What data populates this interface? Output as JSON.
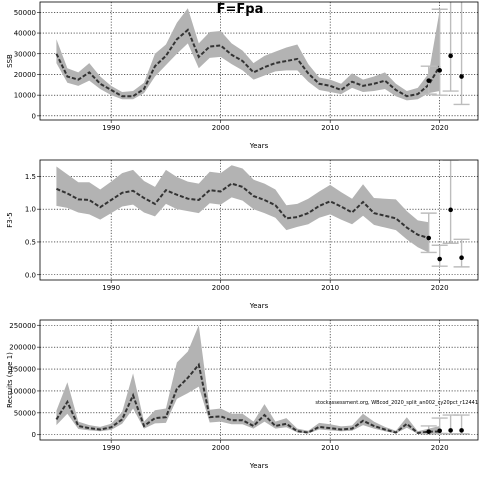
{
  "title": "F=Fpa",
  "annotation": "stockassessment.org, WBcod_2020_split_an002_cy20pct_r12441",
  "colors": {
    "band": "#b3b3b3",
    "line": "#333333",
    "forecast": "#000000",
    "whisker": "#bdbdbd",
    "grid": "#000000"
  },
  "chart_data": [
    {
      "type": "line",
      "name": "ssb",
      "ylabel": "SSB",
      "xlabel": "Years",
      "xlim": [
        1983.5,
        2023.5
      ],
      "ylim": [
        -2000,
        55000
      ],
      "xticks": [
        1990,
        2000,
        2010,
        2020
      ],
      "yticks": [
        0,
        10000,
        20000,
        30000,
        40000,
        50000
      ],
      "x": [
        1985,
        1986,
        1987,
        1988,
        1989,
        1990,
        1991,
        1992,
        1993,
        1994,
        1995,
        1996,
        1997,
        1998,
        1999,
        2000,
        2001,
        2002,
        2003,
        2004,
        2005,
        2006,
        2007,
        2008,
        2009,
        2010,
        2011,
        2012,
        2013,
        2014,
        2015,
        2016,
        2017,
        2018,
        2019,
        2020
      ],
      "estimate": [
        30000,
        19000,
        17500,
        21000,
        15500,
        12500,
        9500,
        9500,
        13000,
        24000,
        29000,
        37000,
        41500,
        28500,
        33500,
        34000,
        29500,
        26500,
        21000,
        23500,
        25500,
        26500,
        27500,
        20500,
        15500,
        14500,
        12500,
        16500,
        14500,
        15500,
        17000,
        12500,
        9500,
        10500,
        15000,
        24000
      ],
      "lower": [
        25500,
        16000,
        14500,
        17000,
        13000,
        10000,
        8000,
        8000,
        11000,
        19000,
        24500,
        30000,
        35000,
        23000,
        28000,
        28500,
        25000,
        22000,
        17500,
        19500,
        21500,
        22000,
        22000,
        16500,
        12500,
        11500,
        10500,
        13500,
        11500,
        12000,
        13000,
        9500,
        7500,
        8000,
        11000,
        12000
      ],
      "upper": [
        37000,
        23000,
        21000,
        25500,
        19000,
        14500,
        11500,
        12000,
        16000,
        30000,
        34500,
        45000,
        52000,
        35000,
        40500,
        41000,
        35000,
        31500,
        25500,
        29000,
        31000,
        33000,
        34500,
        25000,
        18500,
        17500,
        15500,
        20500,
        17500,
        19000,
        21000,
        15500,
        12000,
        13500,
        20500,
        51000
      ],
      "forecast": [
        {
          "x": 2019,
          "est": 17000,
          "lo": 10500,
          "hi": 24000
        },
        {
          "x": 2020,
          "est": 22000,
          "lo": 10000,
          "hi": 51500
        },
        {
          "x": 2021,
          "est": 29000,
          "lo": 12000,
          "hi": 58000
        },
        {
          "x": 2022,
          "est": 19000,
          "lo": 5500,
          "hi": 58000
        }
      ]
    },
    {
      "type": "line",
      "name": "fbar",
      "ylabel": "F3-5",
      "xlabel": "Years",
      "xlim": [
        1983.5,
        2023.5
      ],
      "ylim": [
        -0.08,
        1.75
      ],
      "xticks": [
        1990,
        2000,
        2010,
        2020
      ],
      "yticks": [
        0.0,
        0.5,
        1.0,
        1.5
      ],
      "x": [
        1985,
        1986,
        1987,
        1988,
        1989,
        1990,
        1991,
        1992,
        1993,
        1994,
        1995,
        1996,
        1997,
        1998,
        1999,
        2000,
        2001,
        2002,
        2003,
        2004,
        2005,
        2006,
        2007,
        2008,
        2009,
        2010,
        2011,
        2012,
        2013,
        2014,
        2015,
        2016,
        2017,
        2018,
        2019
      ],
      "estimate": [
        1.31,
        1.24,
        1.15,
        1.14,
        1.03,
        1.14,
        1.25,
        1.28,
        1.17,
        1.08,
        1.29,
        1.22,
        1.16,
        1.14,
        1.29,
        1.27,
        1.39,
        1.34,
        1.2,
        1.14,
        1.06,
        0.86,
        0.88,
        0.94,
        1.05,
        1.12,
        1.04,
        0.95,
        1.11,
        0.94,
        0.9,
        0.86,
        0.72,
        0.61,
        0.56
      ],
      "lower": [
        1.05,
        1.02,
        0.95,
        0.92,
        0.84,
        0.94,
        1.04,
        1.07,
        0.95,
        0.89,
        1.08,
        1.0,
        0.97,
        0.94,
        1.09,
        1.07,
        1.18,
        1.13,
        1.0,
        0.94,
        0.87,
        0.68,
        0.73,
        0.77,
        0.87,
        0.92,
        0.84,
        0.77,
        0.9,
        0.76,
        0.72,
        0.68,
        0.54,
        0.42,
        0.34
      ],
      "upper": [
        1.65,
        1.53,
        1.41,
        1.41,
        1.3,
        1.42,
        1.55,
        1.6,
        1.43,
        1.34,
        1.6,
        1.49,
        1.42,
        1.39,
        1.57,
        1.55,
        1.67,
        1.62,
        1.45,
        1.39,
        1.3,
        1.06,
        1.08,
        1.16,
        1.27,
        1.37,
        1.26,
        1.16,
        1.38,
        1.17,
        1.16,
        1.15,
        0.97,
        0.83,
        0.8
      ],
      "forecast": [
        {
          "x": 2019,
          "est": 0.56,
          "lo": 0.34,
          "hi": 0.94
        },
        {
          "x": 2020,
          "est": 0.24,
          "lo": 0.13,
          "hi": 0.45
        },
        {
          "x": 2021,
          "est": 0.99,
          "lo": 0.48,
          "hi": 1.75
        },
        {
          "x": 2022,
          "est": 0.26,
          "lo": 0.12,
          "hi": 0.54
        }
      ]
    },
    {
      "type": "line",
      "name": "recruits",
      "ylabel": "Recruits (age 1)",
      "xlabel": "Years",
      "xlim": [
        1983.5,
        2023.5
      ],
      "ylim": [
        -12000,
        262000
      ],
      "xticks": [
        1990,
        2000,
        2010,
        2020
      ],
      "yticks": [
        0,
        50000,
        100000,
        150000,
        200000,
        250000
      ],
      "x": [
        1985,
        1986,
        1987,
        1988,
        1989,
        1990,
        1991,
        1992,
        1993,
        1994,
        1995,
        1996,
        1997,
        1998,
        1999,
        2000,
        2001,
        2002,
        2003,
        2004,
        2005,
        2006,
        2007,
        2008,
        2009,
        2010,
        2011,
        2012,
        2013,
        2014,
        2015,
        2016,
        2017,
        2018,
        2019,
        2020
      ],
      "estimate": [
        35000,
        75000,
        20000,
        15000,
        12000,
        17000,
        35000,
        90000,
        20000,
        38000,
        40000,
        105000,
        130000,
        160000,
        40000,
        42000,
        33000,
        33000,
        20000,
        45000,
        20000,
        25000,
        8000,
        5000,
        18000,
        15000,
        12000,
        14000,
        32000,
        20000,
        12000,
        5000,
        25000,
        4000,
        7000,
        7000
      ],
      "lower": [
        22000,
        48000,
        13000,
        10000,
        8000,
        11000,
        25000,
        60000,
        14000,
        26000,
        27000,
        82000,
        95000,
        110000,
        28000,
        30000,
        24000,
        24000,
        14000,
        30000,
        14000,
        17000,
        5000,
        3000,
        12000,
        10000,
        8000,
        9000,
        22000,
        14000,
        8000,
        3000,
        16000,
        2000,
        3000,
        2000
      ],
      "upper": [
        55000,
        120000,
        30000,
        22000,
        18000,
        25000,
        52000,
        140000,
        30000,
        56000,
        60000,
        165000,
        190000,
        250000,
        57000,
        60000,
        48000,
        48000,
        30000,
        70000,
        30000,
        38000,
        14000,
        9000,
        27000,
        24000,
        19000,
        21000,
        48000,
        30000,
        18000,
        9000,
        40000,
        8000,
        14000,
        20000
      ],
      "forecast": [
        {
          "x": 2019,
          "est": 7000,
          "lo": 2000,
          "hi": 20000
        },
        {
          "x": 2020,
          "est": 9000,
          "lo": 3000,
          "hi": 38000
        },
        {
          "x": 2021,
          "est": 10000,
          "lo": 2000,
          "hi": 45000
        },
        {
          "x": 2022,
          "est": 10000,
          "lo": 2000,
          "hi": 45000
        }
      ]
    }
  ]
}
